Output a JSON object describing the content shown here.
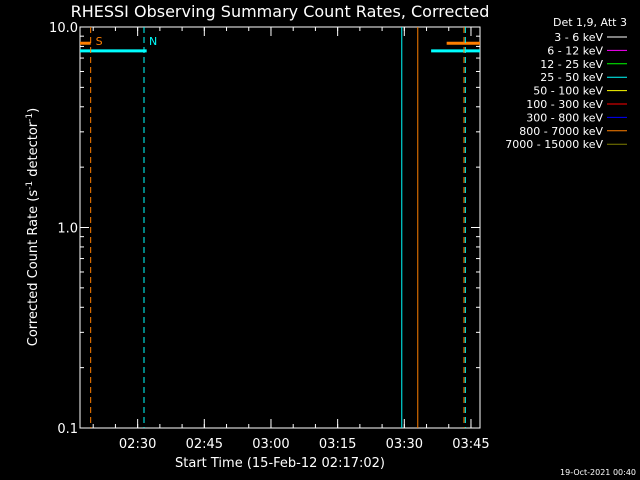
{
  "chart_data": {
    "type": "line",
    "title": "RHESSI Observing Summary Count Rates, Corrected",
    "xlabel": "Start Time (15-Feb-12 02:17:02)",
    "ylabel_main": "Corrected Count Rate (s",
    "ylabel_sup1": "-1",
    "ylabel_mid": " detector",
    "ylabel_sup2": "-1",
    "ylabel_end": ")",
    "yscale": "log",
    "ylim": [
      0.1,
      10.0
    ],
    "xlim_minutes": [
      0,
      90
    ],
    "yticks": [
      {
        "v": 0.1,
        "label": "0.1"
      },
      {
        "v": 1.0,
        "label": "1.0"
      },
      {
        "v": 10.0,
        "label": "10.0"
      }
    ],
    "xticks": [
      {
        "v": 12.97,
        "label": "02:30"
      },
      {
        "v": 27.97,
        "label": "02:45"
      },
      {
        "v": 42.97,
        "label": "03:00"
      },
      {
        "v": 57.97,
        "label": "03:15"
      },
      {
        "v": 72.97,
        "label": "03:30"
      },
      {
        "v": 87.97,
        "label": "03:45"
      }
    ],
    "legend": {
      "header": "Det 1,9, Att 3",
      "items": [
        {
          "label": "3 - 6 keV",
          "color": "#ffffff"
        },
        {
          "label": "6 - 12 keV",
          "color": "#ff00ff"
        },
        {
          "label": "12 - 25 keV",
          "color": "#00ff00"
        },
        {
          "label": "25 - 50 keV",
          "color": "#00ffff"
        },
        {
          "label": "50 - 100 keV",
          "color": "#ffff00"
        },
        {
          "label": "100 - 300 keV",
          "color": "#ff0000"
        },
        {
          "label": "300 - 800 keV",
          "color": "#0000ff"
        },
        {
          "label": "800 - 7000 keV",
          "color": "#ff7f00"
        },
        {
          "label": "7000 - 15000 keV",
          "color": "#7f7f00"
        }
      ]
    },
    "series": [
      {
        "segments": [
          {
            "x": [
              0,
              15
            ],
            "y": [
              7.6,
              7.6
            ]
          },
          {
            "x": [
              79,
              90
            ],
            "y": [
              7.6,
              7.6
            ]
          }
        ],
        "color": "#00ffff"
      },
      {
        "segments": [
          {
            "x": [
              0,
              2.4
            ],
            "y": [
              8.3,
              8.3
            ]
          },
          {
            "x": [
              82.5,
              90
            ],
            "y": [
              8.3,
              8.3
            ]
          }
        ],
        "color": "#ff7f00"
      }
    ],
    "vlines": [
      {
        "x": 2.4,
        "color": "#ff7f00",
        "style": "dashed",
        "label": "S"
      },
      {
        "x": 14.4,
        "color": "#00ffff",
        "style": "dashed",
        "label": "N"
      },
      {
        "x": 72.4,
        "color": "#00ffff",
        "style": "solid",
        "label": ""
      },
      {
        "x": 76.0,
        "color": "#ff7f00",
        "style": "solid",
        "label": ""
      },
      {
        "x": 86.4,
        "color": "#ff7f00",
        "style": "dashed",
        "label": ""
      },
      {
        "x": 86.7,
        "color": "#00ffff",
        "style": "dashed",
        "label": ""
      }
    ]
  },
  "timestamp": "19-Oct-2021 00:40"
}
